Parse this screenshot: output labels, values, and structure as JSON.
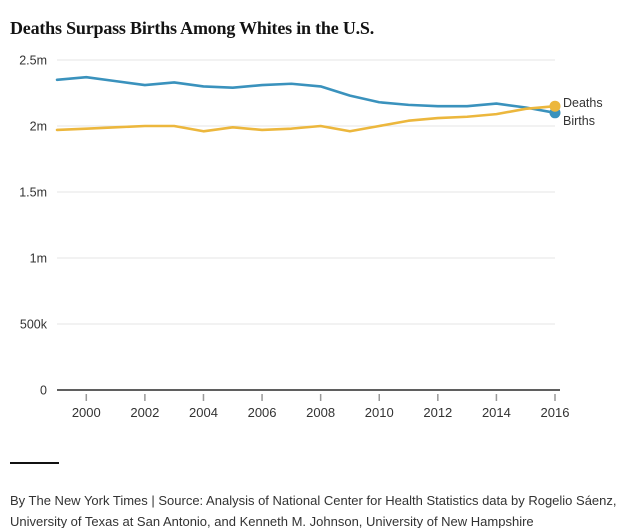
{
  "title": "Deaths Surpass Births Among Whites in the U.S.",
  "legend": {
    "deaths_label": "Deaths",
    "births_label": "Births"
  },
  "footer": {
    "attribution": "By The New York Times | Source: Analysis of National Center for Health Statistics data by Rogelio Sáenz, University of Texas at San Antonio, and Kenneth M. Johnson, University of New Hampshire"
  },
  "colors": {
    "births_line": "#3a92bd",
    "deaths_line": "#ecb73d",
    "grid": "#e6e6e6",
    "axis": "#5f5f5f",
    "tick": "#999999",
    "label_text": "#333333",
    "title_text": "#131313"
  },
  "chart_data": {
    "type": "line",
    "title": "Deaths Surpass Births Among Whites in the U.S.",
    "units": "millions of people per year",
    "x": [
      1999,
      2000,
      2001,
      2002,
      2003,
      2004,
      2005,
      2006,
      2007,
      2008,
      2009,
      2010,
      2011,
      2012,
      2013,
      2014,
      2015,
      2016
    ],
    "series": [
      {
        "name": "Births",
        "color": "#3a92bd",
        "values": [
          2.35,
          2.37,
          2.34,
          2.31,
          2.33,
          2.3,
          2.29,
          2.31,
          2.32,
          2.3,
          2.23,
          2.18,
          2.16,
          2.15,
          2.15,
          2.17,
          2.14,
          2.1
        ]
      },
      {
        "name": "Deaths",
        "color": "#ecb73d",
        "values": [
          1.97,
          1.98,
          1.99,
          2.0,
          2.0,
          1.96,
          1.99,
          1.97,
          1.98,
          2.0,
          1.96,
          2.0,
          2.04,
          2.06,
          2.07,
          2.09,
          2.13,
          2.15
        ]
      }
    ],
    "ylim_millions": [
      0,
      2.5
    ],
    "yticks": {
      "values_millions": [
        0,
        0.5,
        1,
        1.5,
        2,
        2.5
      ],
      "labels": [
        "0",
        "500k",
        "1m",
        "1.5m",
        "2m",
        "2.5m"
      ]
    },
    "xticks": [
      2000,
      2002,
      2004,
      2006,
      2008,
      2010,
      2012,
      2014,
      2016
    ],
    "grid": "horizontal",
    "legend_position": "right-of-line-ends",
    "end_dots": true
  }
}
